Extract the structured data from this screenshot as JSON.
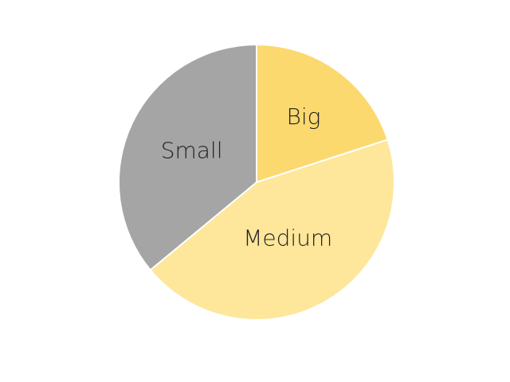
{
  "chart_data": {
    "type": "pie",
    "categories": [
      "Big",
      "Medium",
      "Small"
    ],
    "values": [
      20,
      44,
      36
    ],
    "colors": [
      "#fcd96f",
      "#fee69b",
      "#a5a5a5"
    ],
    "start": "12 o'clock",
    "direction": "clockwise",
    "legend": "none"
  }
}
